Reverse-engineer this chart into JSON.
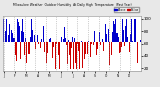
{
  "title": "Milwaukee Weather Outdoor Humidity At Daily High Temperature (Past Year)",
  "ylim": [
    15,
    105
  ],
  "background_color": "#e8e8e8",
  "plot_bg": "#ffffff",
  "legend_colors_above": "#0000cc",
  "legend_colors_below": "#cc0000",
  "bar_width": 0.8,
  "num_points": 365,
  "seed": 7,
  "avg_humidity": 62,
  "amplitude": 18,
  "noise_scale": 22,
  "num_grids": 13,
  "yticks": [
    20,
    40,
    60,
    80,
    100
  ],
  "month_labels": [
    "J",
    "F",
    "M",
    "A",
    "M",
    "J",
    "J",
    "A",
    "S",
    "O",
    "N",
    "D",
    ""
  ]
}
